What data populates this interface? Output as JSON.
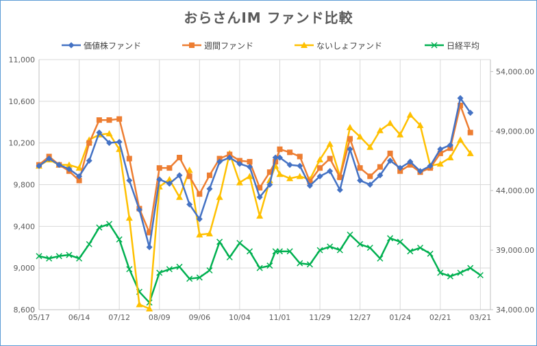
{
  "chart_data": {
    "type": "line",
    "title": "おらさんIM ファンド比較",
    "legend_position": "top",
    "grid": true,
    "x": [
      "05/17",
      "05/24",
      "05/31",
      "06/07",
      "06/14",
      "06/21",
      "06/28",
      "07/05",
      "07/12",
      "07/19",
      "07/26",
      "08/02",
      "08/09",
      "08/16",
      "08/23",
      "08/30",
      "09/06",
      "09/13",
      "09/20",
      "09/27",
      "10/04",
      "10/11",
      "10/18",
      "10/25",
      "11/01",
      "11/08",
      "11/15",
      "11/22",
      "11/29",
      "12/06",
      "12/13",
      "12/20",
      "12/27",
      "01/03",
      "01/10",
      "01/17",
      "01/24",
      "01/31",
      "02/07",
      "02/14",
      "02/21",
      "02/28",
      "03/07",
      "03/14",
      "03/21",
      "03/28"
    ],
    "x_tick_labels": [
      "05/17",
      "06/14",
      "07/12",
      "08/09",
      "09/06",
      "10/04",
      "11/01",
      "11/29",
      "12/27",
      "01/24",
      "02/21",
      "03/21"
    ],
    "y_left": {
      "min": 8600,
      "max": 11000,
      "ticks": [
        "8,600",
        "9,000",
        "9,400",
        "9,800",
        "10,200",
        "10,600",
        "11,000"
      ]
    },
    "y_right": {
      "min": 34000,
      "max": 55000,
      "ticks": [
        "34,000.00",
        "39,000.00",
        "44,000.00",
        "49,000.00",
        "54,000.00"
      ]
    },
    "series": [
      {
        "name": "価値株ファンド",
        "axis": "left",
        "color": "#4472c4",
        "marker": "diamond",
        "points": [
          [
            "05/17",
            9980
          ],
          [
            "05/24",
            10050
          ],
          [
            "05/31",
            9990
          ],
          [
            "06/07",
            9950
          ],
          [
            "06/14",
            9880
          ],
          [
            "06/21",
            10030
          ],
          [
            "06/28",
            10300
          ],
          [
            "07/05",
            10200
          ],
          [
            "07/12",
            10210
          ],
          [
            "07/19",
            9840
          ],
          [
            "07/26",
            9560
          ],
          [
            "08/02",
            9200
          ],
          [
            "08/09",
            9850
          ],
          [
            "08/16",
            9810
          ],
          [
            "08/23",
            9890
          ],
          [
            "08/30",
            9610
          ],
          [
            "09/06",
            9470
          ],
          [
            "09/13",
            9760
          ],
          [
            "09/20",
            10020
          ],
          [
            "09/27",
            10060
          ],
          [
            "10/04",
            10000
          ],
          [
            "10/11",
            9970
          ],
          [
            "10/18",
            9680
          ],
          [
            "10/25",
            9800
          ],
          [
            "10/29",
            10060
          ],
          [
            "11/01",
            10060
          ],
          [
            "11/08",
            9990
          ],
          [
            "11/15",
            9980
          ],
          [
            "11/22",
            9790
          ],
          [
            "11/29",
            9880
          ],
          [
            "12/06",
            9930
          ],
          [
            "12/13",
            9750
          ],
          [
            "12/20",
            10140
          ],
          [
            "12/27",
            9840
          ],
          [
            "01/03",
            9800
          ],
          [
            "01/10",
            9890
          ],
          [
            "01/17",
            10030
          ],
          [
            "01/24",
            9960
          ],
          [
            "01/31",
            10020
          ],
          [
            "02/07",
            9930
          ],
          [
            "02/14",
            9980
          ],
          [
            "02/21",
            10140
          ],
          [
            "02/28",
            10180
          ],
          [
            "03/07",
            10630
          ],
          [
            "03/14",
            10490
          ]
        ]
      },
      {
        "name": "週間ファンド",
        "axis": "left",
        "color": "#ed7d31",
        "marker": "square",
        "points": [
          [
            "05/17",
            9990
          ],
          [
            "05/24",
            10070
          ],
          [
            "05/31",
            9990
          ],
          [
            "06/07",
            9930
          ],
          [
            "06/14",
            9840
          ],
          [
            "06/21",
            10200
          ],
          [
            "06/28",
            10420
          ],
          [
            "07/05",
            10420
          ],
          [
            "07/12",
            10430
          ],
          [
            "07/19",
            10050
          ],
          [
            "07/26",
            9570
          ],
          [
            "08/02",
            9340
          ],
          [
            "08/09",
            9960
          ],
          [
            "08/16",
            9960
          ],
          [
            "08/23",
            10060
          ],
          [
            "08/30",
            9880
          ],
          [
            "09/06",
            9710
          ],
          [
            "09/13",
            9890
          ],
          [
            "09/20",
            10050
          ],
          [
            "09/27",
            10090
          ],
          [
            "10/04",
            10030
          ],
          [
            "10/11",
            10020
          ],
          [
            "10/18",
            9770
          ],
          [
            "10/25",
            9920
          ],
          [
            "10/29",
            10020
          ],
          [
            "11/01",
            10140
          ],
          [
            "11/08",
            10110
          ],
          [
            "11/15",
            10070
          ],
          [
            "11/22",
            9830
          ],
          [
            "11/29",
            9960
          ],
          [
            "12/06",
            10050
          ],
          [
            "12/13",
            9870
          ],
          [
            "12/20",
            10240
          ],
          [
            "12/27",
            9960
          ],
          [
            "01/03",
            9880
          ],
          [
            "01/10",
            9970
          ],
          [
            "01/17",
            10100
          ],
          [
            "01/24",
            9930
          ],
          [
            "01/31",
            9990
          ],
          [
            "02/07",
            9920
          ],
          [
            "02/14",
            9960
          ],
          [
            "02/21",
            10100
          ],
          [
            "02/28",
            10150
          ],
          [
            "03/07",
            10560
          ],
          [
            "03/14",
            10300
          ]
        ]
      },
      {
        "name": "ないしょファンド",
        "axis": "left",
        "color": "#ffc000",
        "marker": "triangle",
        "points": [
          [
            "05/17",
            9980
          ],
          [
            "05/24",
            10040
          ],
          [
            "05/31",
            9990
          ],
          [
            "06/07",
            9990
          ],
          [
            "06/14",
            9960
          ],
          [
            "06/21",
            10230
          ],
          [
            "06/28",
            10280
          ],
          [
            "07/05",
            10290
          ],
          [
            "07/12",
            10140
          ],
          [
            "07/19",
            9480
          ],
          [
            "07/26",
            8650
          ],
          [
            "08/02",
            8610
          ],
          [
            "08/09",
            9780
          ],
          [
            "08/16",
            9850
          ],
          [
            "08/23",
            9680
          ],
          [
            "08/30",
            9940
          ],
          [
            "09/06",
            9320
          ],
          [
            "09/13",
            9330
          ],
          [
            "09/20",
            9680
          ],
          [
            "09/27",
            10100
          ],
          [
            "10/04",
            9820
          ],
          [
            "10/11",
            9880
          ],
          [
            "10/18",
            9500
          ],
          [
            "10/25",
            9840
          ],
          [
            "10/29",
            9980
          ],
          [
            "11/01",
            9900
          ],
          [
            "11/08",
            9860
          ],
          [
            "11/15",
            9880
          ],
          [
            "11/22",
            9850
          ],
          [
            "11/29",
            10040
          ],
          [
            "12/06",
            10190
          ],
          [
            "12/13",
            9880
          ],
          [
            "12/20",
            10350
          ],
          [
            "12/27",
            10260
          ],
          [
            "01/03",
            10160
          ],
          [
            "01/10",
            10320
          ],
          [
            "01/17",
            10390
          ],
          [
            "01/24",
            10280
          ],
          [
            "01/31",
            10470
          ],
          [
            "02/07",
            10370
          ],
          [
            "02/14",
            9980
          ],
          [
            "02/21",
            10000
          ],
          [
            "02/28",
            10060
          ],
          [
            "03/07",
            10230
          ],
          [
            "03/14",
            10100
          ]
        ]
      },
      {
        "name": "日経平均",
        "axis": "right",
        "color": "#00b050",
        "marker": "x",
        "points": [
          [
            "05/17",
            38500
          ],
          [
            "05/24",
            38300
          ],
          [
            "05/31",
            38500
          ],
          [
            "06/07",
            38600
          ],
          [
            "06/14",
            38300
          ],
          [
            "06/21",
            39500
          ],
          [
            "06/28",
            40900
          ],
          [
            "07/05",
            41200
          ],
          [
            "07/12",
            39900
          ],
          [
            "07/19",
            37400
          ],
          [
            "07/26",
            35500
          ],
          [
            "08/02",
            34600
          ],
          [
            "08/09",
            37100
          ],
          [
            "08/16",
            37400
          ],
          [
            "08/23",
            37600
          ],
          [
            "08/30",
            36600
          ],
          [
            "09/06",
            36700
          ],
          [
            "09/13",
            37300
          ],
          [
            "09/20",
            39700
          ],
          [
            "09/27",
            38400
          ],
          [
            "10/04",
            39600
          ],
          [
            "10/11",
            38900
          ],
          [
            "10/18",
            37500
          ],
          [
            "10/25",
            37700
          ],
          [
            "10/29",
            38900
          ],
          [
            "11/01",
            38900
          ],
          [
            "11/08",
            38900
          ],
          [
            "11/15",
            37900
          ],
          [
            "11/22",
            37800
          ],
          [
            "11/29",
            39000
          ],
          [
            "12/06",
            39300
          ],
          [
            "12/13",
            39000
          ],
          [
            "12/20",
            40300
          ],
          [
            "12/27",
            39500
          ],
          [
            "01/03",
            39200
          ],
          [
            "01/10",
            38300
          ],
          [
            "01/17",
            40000
          ],
          [
            "01/24",
            39700
          ],
          [
            "01/31",
            38900
          ],
          [
            "02/07",
            39200
          ],
          [
            "02/14",
            38700
          ],
          [
            "02/21",
            37100
          ],
          [
            "02/28",
            36800
          ],
          [
            "03/07",
            37100
          ],
          [
            "03/14",
            37500
          ],
          [
            "03/21",
            36900
          ]
        ]
      }
    ]
  }
}
